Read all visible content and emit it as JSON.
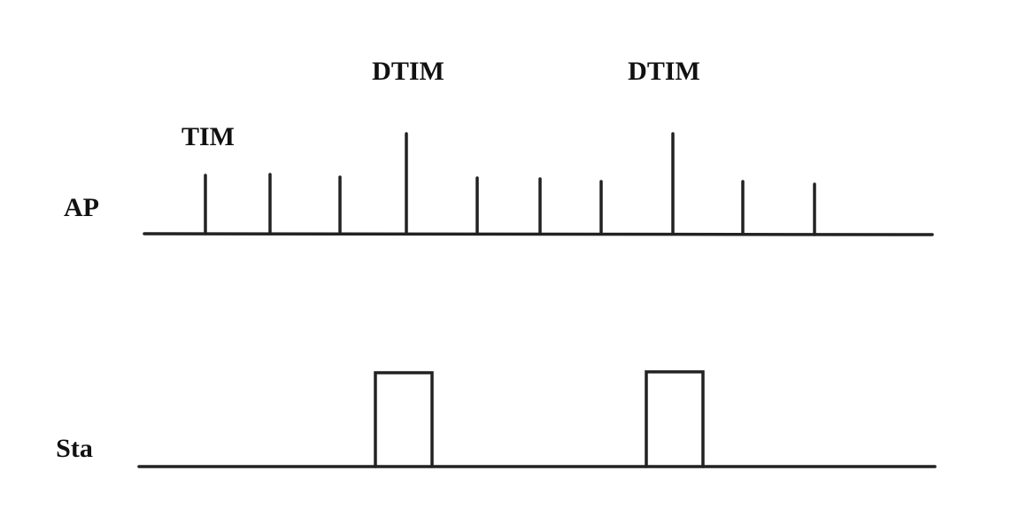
{
  "labels": {
    "ap": "AP",
    "sta": "Sta",
    "tim": "TIM",
    "dtim_1": "DTIM",
    "dtim_2": "DTIM"
  },
  "colors": {
    "stroke": "#222222",
    "text": "#111111"
  }
}
